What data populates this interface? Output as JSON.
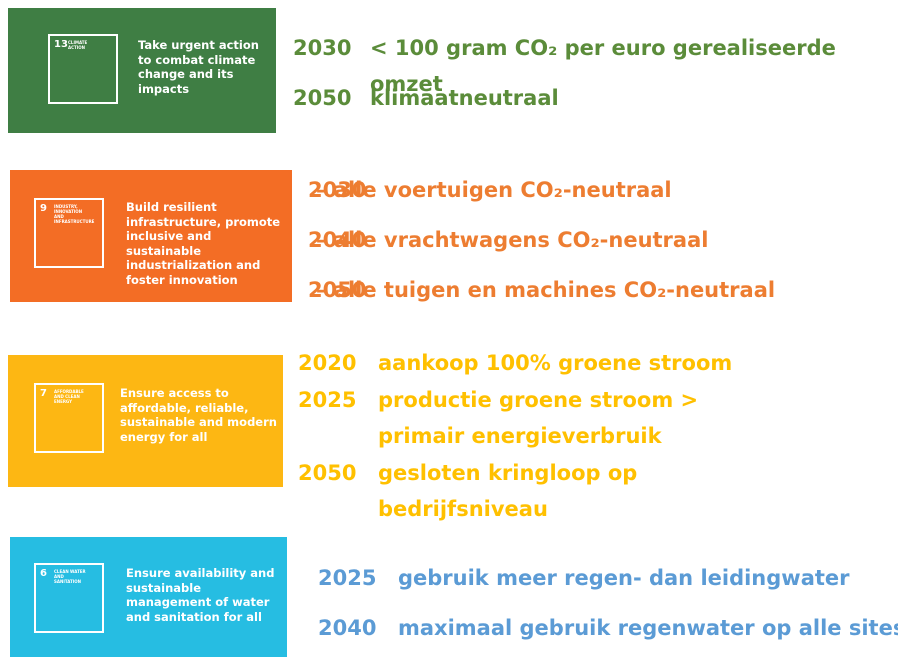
{
  "sections": [
    {
      "goal_number": "13",
      "goal_label": "CLIMATE ACTION",
      "description": "Take urgent action to combat climate change and its impacts",
      "targets": [
        {
          "year": "2030",
          "text": "< 100 gram CO₂ per euro gerealiseerde omzet"
        },
        {
          "year": "2050",
          "text": "klimaatneutraal"
        }
      ]
    },
    {
      "goal_number": "9",
      "goal_label": "INDUSTRY, INNOVATION AND INFRASTRUCTURE",
      "description": "Build resilient infrastructure, promote inclusive and sustainable industrialization and foster innovation",
      "targets": [
        {
          "year": "2030",
          "text": "– alle voertuigen CO₂-neutraal"
        },
        {
          "year": "2040",
          "text": "– alle vrachtwagens CO₂-neutraal"
        },
        {
          "year": "2050",
          "text": "– alle tuigen en machines CO₂-neutraal"
        }
      ]
    },
    {
      "goal_number": "7",
      "goal_label": "AFFORDABLE AND CLEAN ENERGY",
      "description": "Ensure access to affordable, reliable, sustainable and modern energy for all",
      "targets": [
        {
          "year": "2020",
          "text": "aankoop 100% groene stroom"
        },
        {
          "year": "2025",
          "text": "productie groene stroom > primair energieverbruik"
        },
        {
          "year": "2050",
          "text": "gesloten kringloop op bedrijfsniveau"
        }
      ]
    },
    {
      "goal_number": "6",
      "goal_label": "CLEAN WATER AND SANITATION",
      "description": "Ensure availability and sustainable management of water and sanitation for all",
      "targets": [
        {
          "year": "2025",
          "text": "gebruik meer regen- dan leidingwater"
        },
        {
          "year": "2040",
          "text": "maximaal gebruik regenwater op alle sites"
        }
      ]
    }
  ]
}
